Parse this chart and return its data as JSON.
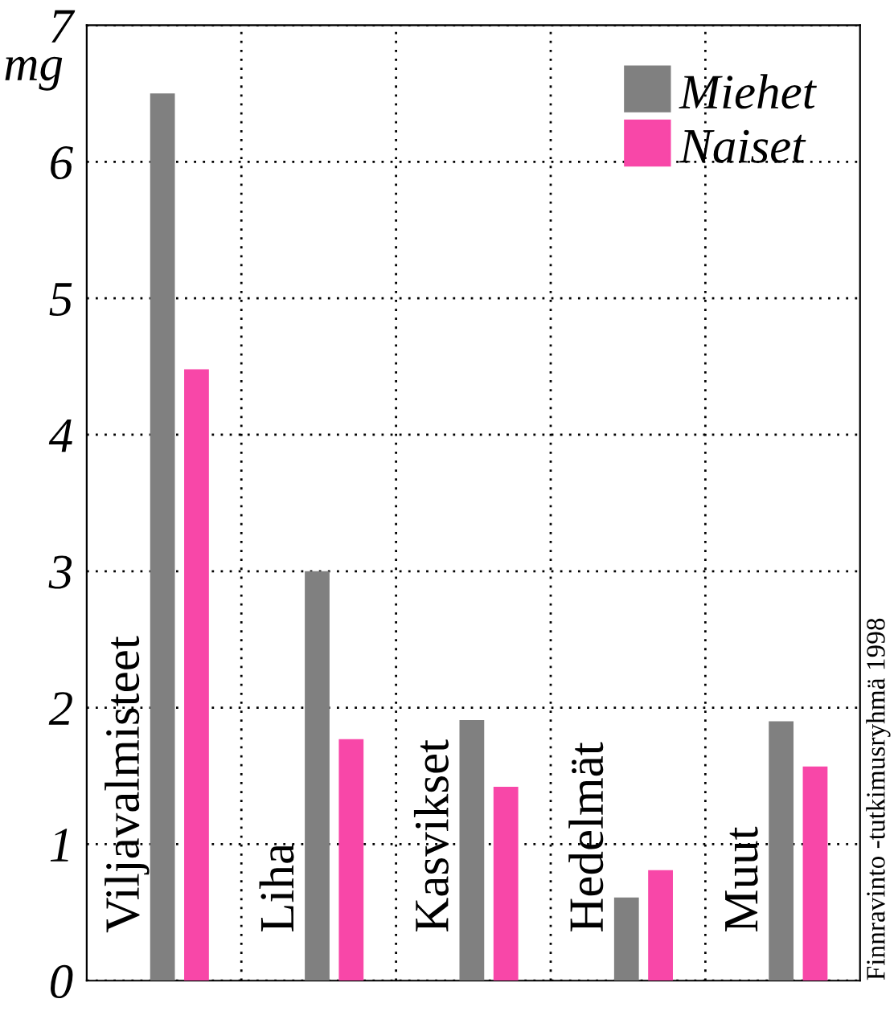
{
  "chart_data": {
    "type": "bar",
    "ylabel": "mg",
    "categories": [
      "Viljavalmisteet",
      "Liha",
      "Kasvikset",
      "Hedelmät",
      "Muut"
    ],
    "series": [
      {
        "name": "Miehet",
        "color": "#808080",
        "values": [
          6.5,
          3.0,
          1.91,
          0.61,
          1.9
        ]
      },
      {
        "name": "Naiset",
        "color": "#f847a8",
        "values": [
          4.48,
          1.77,
          1.42,
          0.81,
          1.57
        ]
      }
    ],
    "ylim": [
      0,
      7
    ],
    "yticks": [
      0,
      1,
      2,
      3,
      4,
      5,
      6,
      7
    ],
    "grid": true,
    "legend": "top right",
    "annotations": [
      "Finnravinto -tutkimusryhmä 1998"
    ]
  }
}
